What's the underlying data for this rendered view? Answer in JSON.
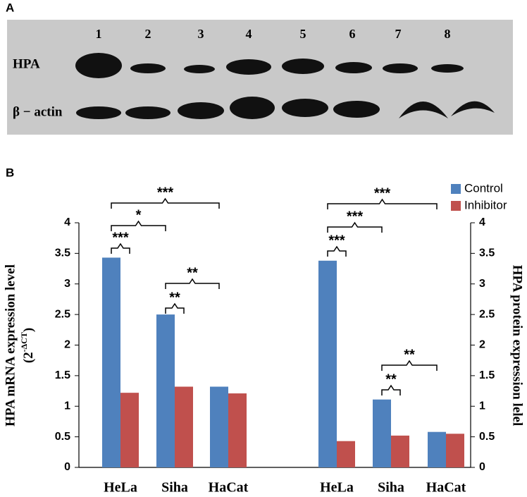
{
  "panel_a": {
    "label": "A",
    "lanes": [
      "1",
      "2",
      "3",
      "4",
      "5",
      "6",
      "7",
      "8"
    ],
    "rows": [
      "HPA",
      "β − actin"
    ]
  },
  "panel_b": {
    "label": "B"
  },
  "chart_data": [
    {
      "type": "bar",
      "ylabel": "HPA mRNA expression level",
      "ylabel_unit": {
        "open": "(2",
        "exponent": "-ΔCT",
        "close": ")"
      },
      "categories": [
        "HeLa",
        "Siha",
        "HaCat"
      ],
      "series": [
        {
          "color": "#4f81bd",
          "values": [
            3.43,
            2.5,
            1.32
          ]
        },
        {
          "color": "#c0504d",
          "values": [
            1.22,
            1.32,
            1.21
          ]
        }
      ],
      "ylim": [
        0,
        4
      ],
      "yticks": [
        0,
        0.5,
        1,
        1.5,
        2,
        2.5,
        3,
        3.5,
        4
      ],
      "annotations": [
        "***",
        "*",
        "***",
        "**",
        "**"
      ]
    },
    {
      "type": "bar",
      "ylabel": "HPA protein expression lelel",
      "categories": [
        "HeLa",
        "Siha",
        "HaCat"
      ],
      "series": [
        {
          "name": "Control",
          "color": "#4f81bd",
          "values": [
            3.38,
            1.11,
            0.58
          ]
        },
        {
          "name": "Inhibitor",
          "color": "#c0504d",
          "values": [
            0.43,
            0.52,
            0.55
          ]
        }
      ],
      "ylim": [
        0,
        4
      ],
      "yticks": [
        0,
        0.5,
        1,
        1.5,
        2,
        2.5,
        3,
        3.5,
        4
      ],
      "annotations": [
        "***",
        "***",
        "***",
        "**",
        "**"
      ],
      "legend": "top-right"
    }
  ]
}
